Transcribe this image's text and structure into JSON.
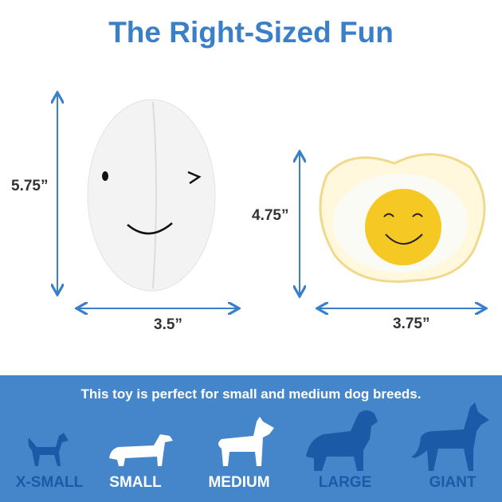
{
  "title": "The Right-Sized Fun",
  "products": [
    {
      "name": "egg-plush",
      "height": "5.75”",
      "width": "3.5”"
    },
    {
      "name": "fried-egg-plush",
      "height": "4.75”",
      "width": "3.75”"
    }
  ],
  "sizes": {
    "note": "This toy is perfect for small and medium dog breeds.",
    "items": [
      {
        "label": "X-SMALL",
        "recommended": false
      },
      {
        "label": "SMALL",
        "recommended": true
      },
      {
        "label": "MEDIUM",
        "recommended": true
      },
      {
        "label": "LARGE",
        "recommended": false
      },
      {
        "label": "GIANT",
        "recommended": false
      }
    ]
  },
  "colors": {
    "accent": "#3a7fc8",
    "band": "#4486c9",
    "not_recommended": "#1b5aa6",
    "recommended": "#ffffff"
  }
}
